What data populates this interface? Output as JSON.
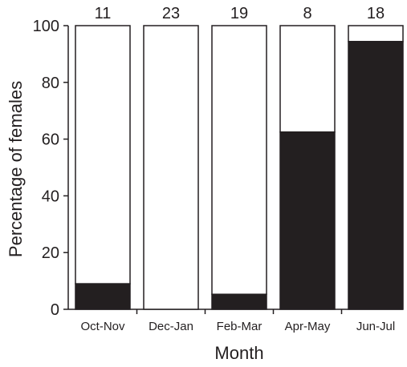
{
  "chart_data": {
    "type": "bar",
    "stacked": true,
    "title": "",
    "xlabel": "Month",
    "ylabel": "Percentage of females",
    "ylim": [
      0,
      100
    ],
    "yticks": [
      "0",
      "20",
      "40",
      "60",
      "80",
      "100"
    ],
    "categories": [
      "Oct-Nov",
      "Dec-Jan",
      "Feb-Mar",
      "Apr-May",
      "Jun-Jul"
    ],
    "sample_sizes": [
      "11",
      "23",
      "19",
      "8",
      "18"
    ],
    "series": [
      {
        "values": [
          9,
          0,
          5.3,
          62.5,
          94.4
        ]
      },
      {
        "values": [
          91,
          100,
          94.7,
          37.5,
          5.6
        ]
      }
    ],
    "grid": false,
    "legend": "none",
    "colors": {
      "filled": "#231f20",
      "unfilled": "#ffffff",
      "axis": "#231f20"
    }
  }
}
